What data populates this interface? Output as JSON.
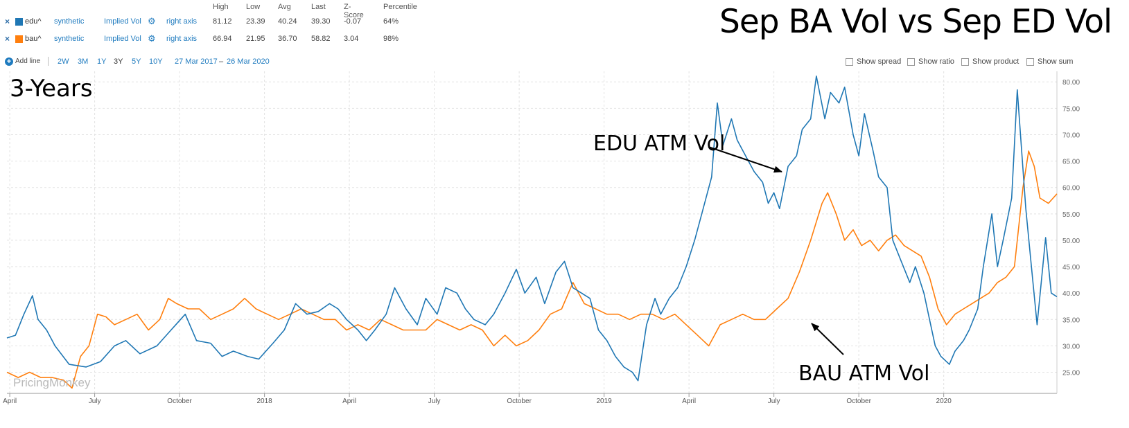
{
  "header": {
    "columns": [
      "High",
      "Low",
      "Avg",
      "Last",
      "Z-Score",
      "Percentile"
    ],
    "series_rows": [
      {
        "remove": "×",
        "name": "edu^",
        "color": "#1f77b4",
        "source": "synthetic",
        "metric": "Implied Vol",
        "axis": "right axis",
        "stats": [
          "81.12",
          "23.39",
          "40.24",
          "39.30",
          "-0.07",
          "64%"
        ]
      },
      {
        "remove": "×",
        "name": "bau^",
        "color": "#ff7f0e",
        "source": "synthetic",
        "metric": "Implied Vol",
        "axis": "right axis",
        "stats": [
          "66.94",
          "21.95",
          "36.70",
          "58.82",
          "3.04",
          "98%"
        ]
      }
    ]
  },
  "toolbar": {
    "add_line": "Add line",
    "ranges": [
      "2W",
      "3M",
      "1Y",
      "3Y",
      "5Y",
      "10Y"
    ],
    "active_range": "3Y",
    "date_from": "27 Mar 2017",
    "date_sep": "–",
    "date_to": "26 Mar 2020",
    "checkboxes": [
      "Show spread",
      "Show ratio",
      "Show product",
      "Show sum"
    ]
  },
  "overlay": {
    "title": "Sep BA Vol vs Sep ED Vol",
    "period": "3-Years",
    "edu_label": "EDU ATM Vol",
    "bau_label": "BAU ATM Vol",
    "watermark": "PricingMonkey"
  },
  "chart_data": {
    "type": "line",
    "x_tick_labels": [
      "April",
      "July",
      "October",
      "2018",
      "April",
      "July",
      "October",
      "2019",
      "April",
      "July",
      "October",
      "2020"
    ],
    "y_tick_labels": [
      "25.00",
      "30.00",
      "35.00",
      "40.00",
      "45.00",
      "50.00",
      "55.00",
      "60.00",
      "65.00",
      "70.00",
      "75.00",
      "80.00"
    ],
    "ylim": [
      21,
      82
    ],
    "y_axis_side": "right",
    "grid": true,
    "series": [
      {
        "name": "edu^",
        "color": "#1f77b4",
        "points": [
          [
            0,
            31.5
          ],
          [
            0.3,
            32
          ],
          [
            0.6,
            36
          ],
          [
            0.9,
            39.5
          ],
          [
            1.1,
            35
          ],
          [
            1.4,
            33
          ],
          [
            1.7,
            30
          ],
          [
            2.2,
            26.5
          ],
          [
            2.8,
            26
          ],
          [
            3.3,
            27
          ],
          [
            3.8,
            30
          ],
          [
            4.2,
            31
          ],
          [
            4.7,
            28.5
          ],
          [
            5.3,
            30
          ],
          [
            5.8,
            33
          ],
          [
            6.3,
            36
          ],
          [
            6.7,
            31
          ],
          [
            7.2,
            30.5
          ],
          [
            7.6,
            28
          ],
          [
            8.0,
            29
          ],
          [
            8.5,
            28
          ],
          [
            8.9,
            27.5
          ],
          [
            9.4,
            30.5
          ],
          [
            9.8,
            33
          ],
          [
            10.2,
            38
          ],
          [
            10.6,
            36
          ],
          [
            11.0,
            36.5
          ],
          [
            11.4,
            38
          ],
          [
            11.7,
            37
          ],
          [
            12.0,
            35
          ],
          [
            12.4,
            33
          ],
          [
            12.7,
            31
          ],
          [
            13.0,
            33
          ],
          [
            13.4,
            36
          ],
          [
            13.7,
            41
          ],
          [
            14.1,
            37
          ],
          [
            14.5,
            34
          ],
          [
            14.8,
            39
          ],
          [
            15.2,
            36
          ],
          [
            15.5,
            41
          ],
          [
            15.9,
            40
          ],
          [
            16.2,
            37
          ],
          [
            16.5,
            35
          ],
          [
            16.9,
            34
          ],
          [
            17.2,
            36
          ],
          [
            17.6,
            40
          ],
          [
            18.0,
            44.5
          ],
          [
            18.3,
            40
          ],
          [
            18.7,
            43
          ],
          [
            19.0,
            38
          ],
          [
            19.4,
            44
          ],
          [
            19.7,
            46
          ],
          [
            20.0,
            41
          ],
          [
            20.3,
            40
          ],
          [
            20.6,
            39
          ],
          [
            20.9,
            33
          ],
          [
            21.2,
            31
          ],
          [
            21.5,
            28
          ],
          [
            21.8,
            26
          ],
          [
            22.1,
            25
          ],
          [
            22.3,
            23.4
          ],
          [
            22.6,
            34
          ],
          [
            22.9,
            39
          ],
          [
            23.1,
            36
          ],
          [
            23.4,
            39
          ],
          [
            23.7,
            41
          ],
          [
            24.0,
            45
          ],
          [
            24.3,
            50
          ],
          [
            24.6,
            56
          ],
          [
            24.9,
            62
          ],
          [
            25.1,
            76
          ],
          [
            25.3,
            68
          ],
          [
            25.6,
            73
          ],
          [
            25.8,
            69
          ],
          [
            26.1,
            66
          ],
          [
            26.4,
            63
          ],
          [
            26.7,
            61
          ],
          [
            26.9,
            57
          ],
          [
            27.1,
            59
          ],
          [
            27.3,
            56
          ],
          [
            27.6,
            64
          ],
          [
            27.9,
            66
          ],
          [
            28.1,
            71
          ],
          [
            28.4,
            73
          ],
          [
            28.6,
            81.1
          ],
          [
            28.9,
            73
          ],
          [
            29.1,
            78
          ],
          [
            29.4,
            76
          ],
          [
            29.6,
            79
          ],
          [
            29.9,
            70
          ],
          [
            30.1,
            66
          ],
          [
            30.3,
            74
          ],
          [
            30.6,
            67
          ],
          [
            30.8,
            62
          ],
          [
            31.1,
            60
          ],
          [
            31.3,
            50
          ],
          [
            31.6,
            46
          ],
          [
            31.9,
            42
          ],
          [
            32.1,
            45
          ],
          [
            32.4,
            40
          ],
          [
            32.6,
            35
          ],
          [
            32.8,
            30
          ],
          [
            33.0,
            28
          ],
          [
            33.3,
            26.5
          ],
          [
            33.5,
            29
          ],
          [
            33.8,
            31
          ],
          [
            34.0,
            33
          ],
          [
            34.3,
            37
          ],
          [
            34.5,
            45
          ],
          [
            34.8,
            55
          ],
          [
            35.0,
            45
          ],
          [
            35.2,
            50
          ],
          [
            35.5,
            58
          ],
          [
            35.7,
            78.5
          ],
          [
            36.0,
            56
          ],
          [
            36.2,
            45
          ],
          [
            36.4,
            34
          ],
          [
            36.7,
            50.5
          ],
          [
            36.9,
            40
          ],
          [
            37.1,
            39.3
          ]
        ]
      },
      {
        "name": "bau^",
        "color": "#ff7f0e",
        "points": [
          [
            0,
            25
          ],
          [
            0.4,
            24
          ],
          [
            0.8,
            25
          ],
          [
            1.2,
            24
          ],
          [
            1.6,
            24
          ],
          [
            2.0,
            23.5
          ],
          [
            2.3,
            22
          ],
          [
            2.6,
            28
          ],
          [
            2.9,
            30
          ],
          [
            3.2,
            36
          ],
          [
            3.5,
            35.5
          ],
          [
            3.8,
            34
          ],
          [
            4.2,
            35
          ],
          [
            4.6,
            36
          ],
          [
            5.0,
            33
          ],
          [
            5.4,
            35
          ],
          [
            5.7,
            39
          ],
          [
            6.0,
            38
          ],
          [
            6.4,
            37
          ],
          [
            6.8,
            37
          ],
          [
            7.2,
            35
          ],
          [
            7.6,
            36
          ],
          [
            8.0,
            37
          ],
          [
            8.4,
            39
          ],
          [
            8.8,
            37
          ],
          [
            9.2,
            36
          ],
          [
            9.6,
            35
          ],
          [
            10.0,
            36
          ],
          [
            10.4,
            37
          ],
          [
            10.8,
            36
          ],
          [
            11.2,
            35
          ],
          [
            11.6,
            35
          ],
          [
            12.0,
            33
          ],
          [
            12.4,
            34
          ],
          [
            12.8,
            33
          ],
          [
            13.2,
            35
          ],
          [
            13.6,
            34
          ],
          [
            14.0,
            33
          ],
          [
            14.4,
            33
          ],
          [
            14.8,
            33
          ],
          [
            15.2,
            35
          ],
          [
            15.6,
            34
          ],
          [
            16.0,
            33
          ],
          [
            16.4,
            34
          ],
          [
            16.8,
            33
          ],
          [
            17.2,
            30
          ],
          [
            17.6,
            32
          ],
          [
            18.0,
            30
          ],
          [
            18.4,
            31
          ],
          [
            18.8,
            33
          ],
          [
            19.2,
            36
          ],
          [
            19.6,
            37
          ],
          [
            20.0,
            42
          ],
          [
            20.4,
            38
          ],
          [
            20.8,
            37
          ],
          [
            21.2,
            36
          ],
          [
            21.6,
            36
          ],
          [
            22.0,
            35
          ],
          [
            22.4,
            36
          ],
          [
            22.8,
            36
          ],
          [
            23.2,
            35
          ],
          [
            23.6,
            36
          ],
          [
            24.0,
            34
          ],
          [
            24.4,
            32
          ],
          [
            24.8,
            30
          ],
          [
            25.2,
            34
          ],
          [
            25.6,
            35
          ],
          [
            26.0,
            36
          ],
          [
            26.4,
            35
          ],
          [
            26.8,
            35
          ],
          [
            27.2,
            37
          ],
          [
            27.6,
            39
          ],
          [
            28.0,
            44
          ],
          [
            28.4,
            50
          ],
          [
            28.8,
            57
          ],
          [
            29.0,
            59
          ],
          [
            29.3,
            55
          ],
          [
            29.6,
            50
          ],
          [
            29.9,
            52
          ],
          [
            30.2,
            49
          ],
          [
            30.5,
            50
          ],
          [
            30.8,
            48
          ],
          [
            31.1,
            50
          ],
          [
            31.4,
            51
          ],
          [
            31.7,
            49
          ],
          [
            32.0,
            48
          ],
          [
            32.3,
            47
          ],
          [
            32.6,
            43
          ],
          [
            32.9,
            37
          ],
          [
            33.2,
            34
          ],
          [
            33.5,
            36
          ],
          [
            33.8,
            37
          ],
          [
            34.1,
            38
          ],
          [
            34.4,
            39
          ],
          [
            34.7,
            40
          ],
          [
            35.0,
            42
          ],
          [
            35.3,
            43
          ],
          [
            35.6,
            45
          ],
          [
            35.9,
            60
          ],
          [
            36.1,
            66.9
          ],
          [
            36.3,
            64
          ],
          [
            36.5,
            58
          ],
          [
            36.8,
            57
          ],
          [
            37.1,
            58.8
          ]
        ]
      }
    ]
  }
}
